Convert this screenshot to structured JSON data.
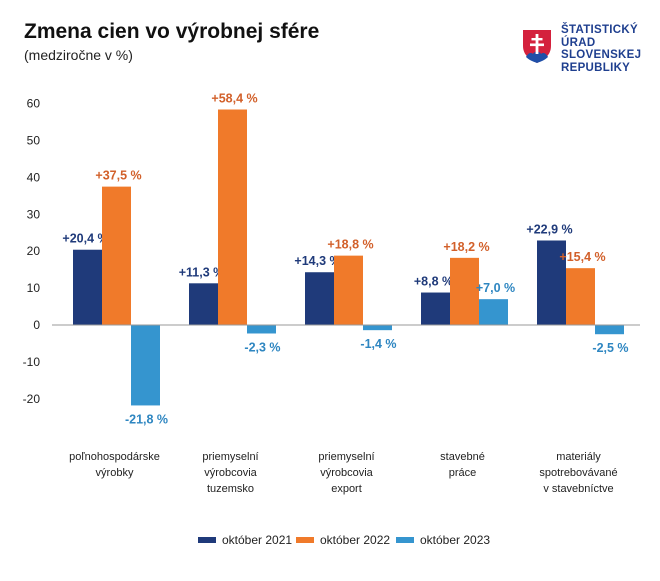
{
  "title": "Zmena cien vo výrobnej sfére",
  "subtitle": "(medziročne v %)",
  "logo": {
    "lines": [
      "ŠTATISTICKÝ",
      "ÚRAD",
      "SLOVENSKEJ",
      "REPUBLIKY"
    ],
    "text_color": "#1f3f8f"
  },
  "chart_data": {
    "type": "bar",
    "categories": [
      [
        "poľnohospodárske",
        "výrobky"
      ],
      [
        "priemyselní",
        "výrobcovia",
        "tuzemsko"
      ],
      [
        "priemyselní",
        "výrobcovia",
        "export"
      ],
      [
        "stavebné",
        "práce"
      ],
      [
        "materiály",
        "spotrebovávané",
        "v stavebníctve"
      ]
    ],
    "series": [
      {
        "name": "október 2021",
        "color": "#1f3a7a",
        "values": [
          20.4,
          11.3,
          14.3,
          8.8,
          22.9
        ],
        "labels": [
          "+20,4 %",
          "+11,3 %",
          "+14,3 %",
          "+8,8 %",
          "+22,9 %"
        ]
      },
      {
        "name": "október 2022",
        "color": "#f07a2a",
        "values": [
          37.5,
          58.4,
          18.8,
          18.2,
          15.4
        ],
        "labels": [
          "+37,5 %",
          "+58,4 %",
          "+18,8 %",
          "+18,2 %",
          "+15,4 %"
        ]
      },
      {
        "name": "október 2023",
        "color": "#3595cf",
        "values": [
          -21.8,
          -2.3,
          -1.4,
          7.0,
          -2.5
        ],
        "labels": [
          "-21,8 %",
          "-2,3 %",
          "-1,4 %",
          "+7,0 %",
          "-2,5 %"
        ]
      }
    ],
    "label_colors": [
      "#1f3a7a",
      "#d2602a",
      "#2e86c1"
    ],
    "yticks": [
      60,
      50,
      40,
      30,
      20,
      10,
      0,
      -10,
      -20
    ],
    "ylim": [
      -20,
      60
    ],
    "grid": false,
    "legend": "bottom"
  }
}
